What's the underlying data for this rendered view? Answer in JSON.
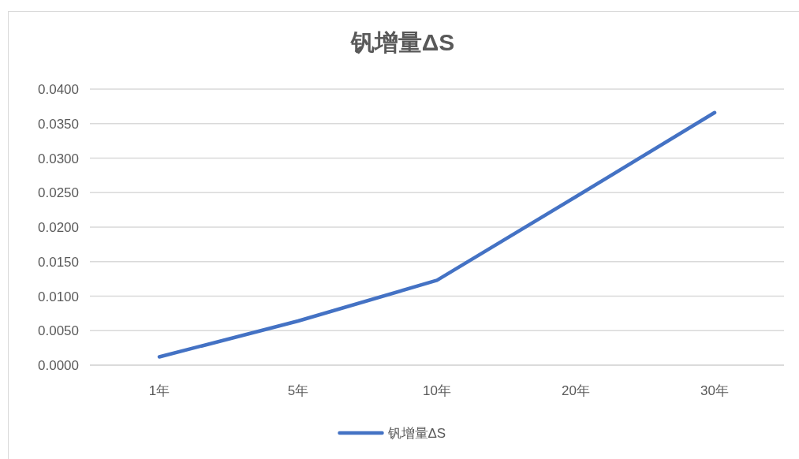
{
  "chart_data": {
    "type": "line",
    "title": "钒增量ΔS",
    "categories": [
      "1年",
      "5年",
      "10年",
      "20年",
      "30年"
    ],
    "series": [
      {
        "name": "钒增量ΔS",
        "color": "#4472c4",
        "values": [
          0.0012,
          0.0064,
          0.0123,
          0.0244,
          0.0366
        ]
      }
    ],
    "ylim": [
      0,
      0.04
    ],
    "yticks": [
      {
        "value": 0,
        "label": "0.0000"
      },
      {
        "value": 0.005,
        "label": "0.0050"
      },
      {
        "value": 0.01,
        "label": "0.0100"
      },
      {
        "value": 0.015,
        "label": "0.0150"
      },
      {
        "value": 0.02,
        "label": "0.0200"
      },
      {
        "value": 0.025,
        "label": "0.0250"
      },
      {
        "value": 0.03,
        "label": "0.0300"
      },
      {
        "value": 0.035,
        "label": "0.0350"
      },
      {
        "value": 0.04,
        "label": "0.0400"
      }
    ],
    "grid": "y",
    "legend": "bottom",
    "marker": "none",
    "line_style": "solid"
  }
}
